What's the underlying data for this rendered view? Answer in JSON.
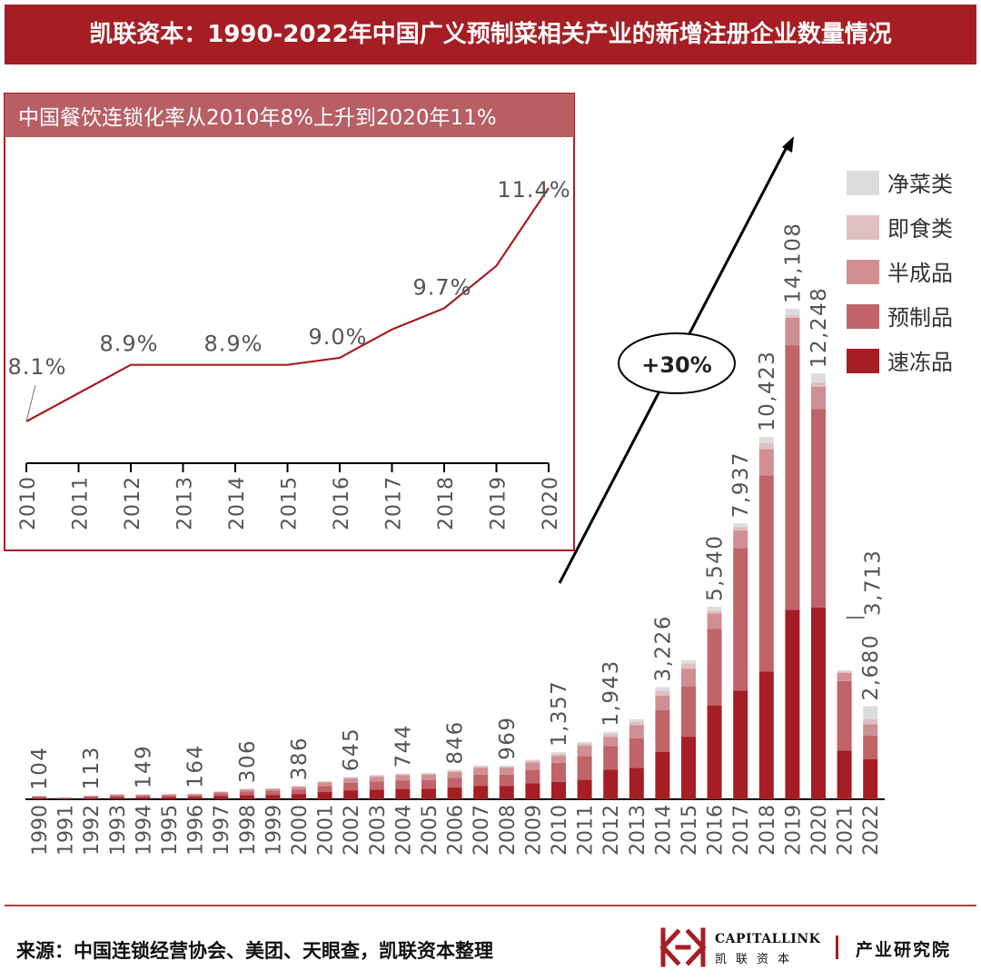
{
  "title": "凯联资本：1990-2022年中国广义预制菜相关产业的新增注册企业数量情况",
  "source": "来源：中国连锁经营协会、美团、天眼查，凯联资本整理",
  "logo": {
    "en": "CAPITALLINK",
    "cn": "凯联资本",
    "dept": "产业研究院"
  },
  "colors": {
    "brand": "#a51e24",
    "速冻品": "#a51e24",
    "预制品": "#c0646a",
    "半成品": "#cf8f93",
    "即食类": "#e0bfc1",
    "净菜类": "#dcdcdc"
  },
  "chart_data": [
    {
      "type": "bar",
      "stacked": true,
      "title": "凯联资本：1990-2022年中国广义预制菜相关产业的新增注册企业数量情况",
      "legend_position": "top-right",
      "categories": [
        "1990",
        "1991",
        "1992",
        "1993",
        "1994",
        "1995",
        "1996",
        "1997",
        "1998",
        "1999",
        "2000",
        "2001",
        "2002",
        "2003",
        "2004",
        "2005",
        "2006",
        "2007",
        "2008",
        "2009",
        "2010",
        "2011",
        "2012",
        "2013",
        "2014",
        "2015",
        "2016",
        "2017",
        "2018",
        "2019",
        "2020",
        "2021",
        "2022"
      ],
      "totals": [
        104,
        60,
        113,
        150,
        149,
        155,
        164,
        230,
        306,
        320,
        386,
        520,
        645,
        700,
        744,
        760,
        846,
        970,
        969,
        1140,
        1357,
        1650,
        1943,
        2300,
        3226,
        4000,
        5540,
        7937,
        10423,
        14108,
        12248,
        3713,
        2680
      ],
      "labeled_totals": {
        "1990": "104",
        "1992": "113",
        "1994": "149",
        "1996": "164",
        "1998": "306",
        "2000": "386",
        "2002": "645",
        "2004": "744",
        "2006": "846",
        "2008": "969",
        "2010": "1,357",
        "2012": "1,943",
        "2014": "3,226",
        "2016": "5,540",
        "2017": "7,937",
        "2018": "10,423",
        "2019": "14,108",
        "2020": "12,248",
        "2021": "3,713",
        "2022": "2,680"
      },
      "series": [
        {
          "name": "速冻品",
          "values": [
            40,
            22,
            45,
            60,
            60,
            62,
            66,
            92,
            122,
            128,
            154,
            208,
            258,
            280,
            298,
            304,
            338,
            388,
            388,
            456,
            500,
            560,
            850,
            900,
            1360,
            1800,
            2700,
            3130,
            3670,
            5450,
            5520,
            1400,
            1150
          ]
        },
        {
          "name": "预制品",
          "values": [
            35,
            20,
            38,
            50,
            48,
            52,
            55,
            77,
            102,
            107,
            130,
            175,
            215,
            233,
            248,
            253,
            283,
            324,
            323,
            380,
            550,
            680,
            680,
            850,
            1200,
            1450,
            2200,
            4100,
            5650,
            7600,
            5700,
            2000,
            680
          ]
        },
        {
          "name": "半成品",
          "values": [
            20,
            12,
            22,
            28,
            29,
            30,
            32,
            45,
            60,
            63,
            76,
            101,
            127,
            137,
            146,
            150,
            166,
            190,
            190,
            224,
            200,
            300,
            260,
            380,
            420,
            500,
            450,
            500,
            750,
            800,
            650,
            230,
            330
          ]
        },
        {
          "name": "即食类",
          "values": [
            5,
            3,
            5,
            7,
            7,
            7,
            7,
            10,
            14,
            14,
            17,
            23,
            28,
            31,
            33,
            34,
            37,
            43,
            43,
            50,
            60,
            70,
            90,
            100,
            130,
            150,
            80,
            95,
            170,
            63,
            128,
            38,
            140
          ]
        },
        {
          "name": "净菜类",
          "values": [
            4,
            3,
            3,
            5,
            5,
            4,
            4,
            6,
            8,
            8,
            9,
            13,
            17,
            19,
            19,
            19,
            22,
            25,
            25,
            30,
            47,
            40,
            63,
            70,
            116,
            100,
            110,
            112,
            183,
            195,
            250,
            45,
            380
          ]
        }
      ],
      "ylim": [
        0,
        15000
      ],
      "annotation": "+30%"
    },
    {
      "type": "line",
      "title": "中国餐饮连锁化率从2010年8%上升到2020年11%",
      "x": [
        "2010",
        "2011",
        "2012",
        "2013",
        "2014",
        "2015",
        "2016",
        "2017",
        "2018",
        "2019",
        "2020"
      ],
      "values": [
        8.1,
        8.5,
        8.9,
        8.9,
        8.9,
        8.9,
        9.0,
        9.4,
        9.7,
        10.3,
        11.4
      ],
      "value_labels": {
        "2010": "8.1%",
        "2012": "8.9%",
        "2014": "8.9%",
        "2016": "9.0%",
        "2018": "9.7%",
        "2020": "11.4%"
      },
      "ylim": [
        8.1,
        11.4
      ]
    }
  ]
}
